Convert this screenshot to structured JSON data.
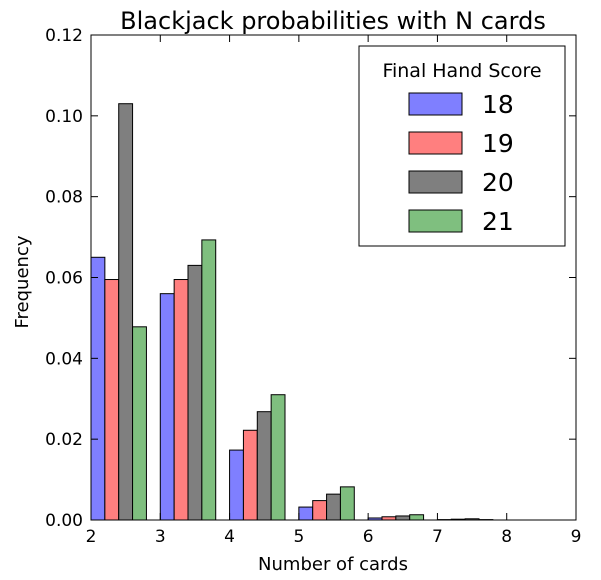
{
  "chart_data": {
    "type": "bar",
    "title": "Blackjack probabilities with N cards",
    "xlabel": "Number of cards",
    "ylabel": "Frequency",
    "xlim": [
      2,
      9
    ],
    "ylim": [
      0,
      0.12
    ],
    "xticks": [
      "2",
      "3",
      "4",
      "5",
      "6",
      "7",
      "8",
      "9"
    ],
    "yticks": [
      "0.00",
      "0.02",
      "0.04",
      "0.06",
      "0.08",
      "0.10",
      "0.12"
    ],
    "categories": [
      2,
      3,
      4,
      5,
      6,
      7
    ],
    "legend": {
      "title": "Final Hand Score",
      "placement": "top-right"
    },
    "grid": false,
    "series": [
      {
        "name": "18",
        "color": "#7f7fff",
        "values": [
          0.065,
          0.056,
          0.0173,
          0.0032,
          0.0005,
          0.0001
        ]
      },
      {
        "name": "19",
        "color": "#ff7f7f",
        "values": [
          0.0595,
          0.0595,
          0.0222,
          0.0048,
          0.0008,
          0.0002
        ]
      },
      {
        "name": "20",
        "color": "#7f7f7f",
        "values": [
          0.103,
          0.063,
          0.0268,
          0.0064,
          0.001,
          0.0003
        ]
      },
      {
        "name": "21",
        "color": "#7fbf7f",
        "values": [
          0.0478,
          0.0693,
          0.031,
          0.0082,
          0.0013,
          0.0001
        ]
      }
    ]
  }
}
